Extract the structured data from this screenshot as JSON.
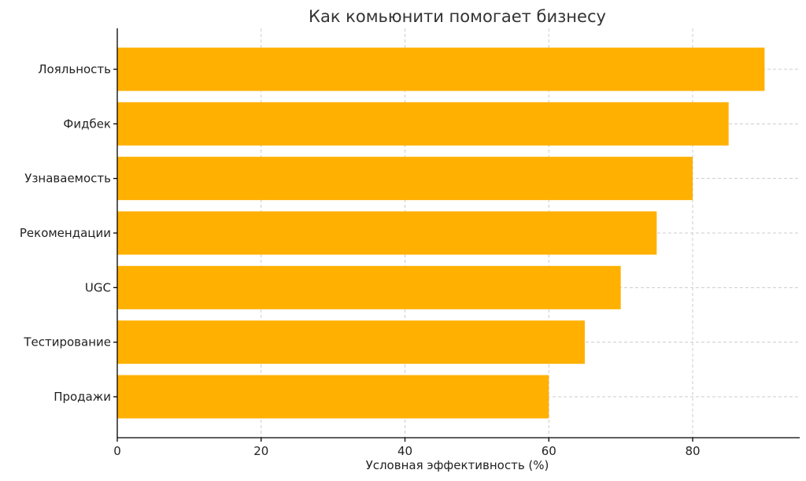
{
  "chart_data": {
    "type": "bar",
    "orientation": "horizontal",
    "title": "Как комьюнити помогает бизнесу",
    "xlabel": "Условная эффективность (%)",
    "ylabel": "",
    "categories": [
      "Лояльность",
      "Фидбек",
      "Узнаваемость",
      "Рекомендации",
      "UGC",
      "Тестирование",
      "Продажи"
    ],
    "values": [
      90,
      85,
      80,
      75,
      70,
      65,
      60
    ],
    "xlim": [
      0,
      95
    ],
    "xticks": [
      0,
      20,
      40,
      60,
      80
    ],
    "xtick_labels": [
      "0",
      "20",
      "40",
      "60",
      "80"
    ],
    "grid": true,
    "bar_color": "#FFB000"
  }
}
